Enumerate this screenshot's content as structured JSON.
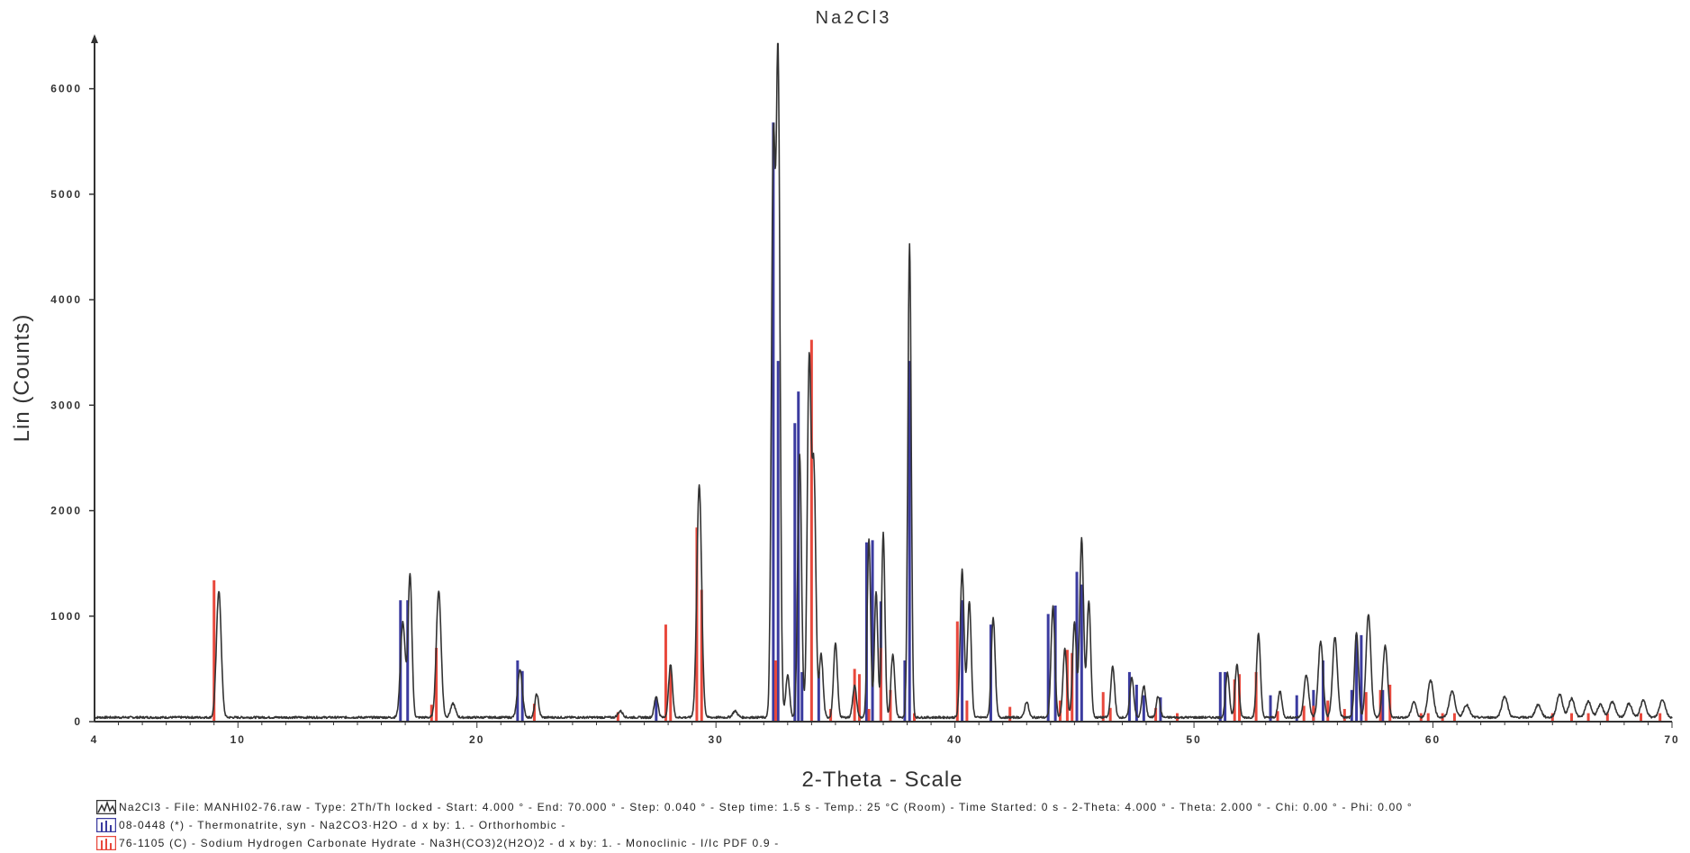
{
  "chart_data": {
    "type": "line",
    "title": "Na2Cl3",
    "xlabel": "2-Theta - Scale",
    "ylabel": "Lin (Counts)",
    "xlim": [
      4,
      70
    ],
    "ylim": [
      0,
      6500
    ],
    "x_ticks": [
      4,
      10,
      20,
      30,
      40,
      50,
      60,
      70
    ],
    "y_ticks": [
      0,
      1000,
      2000,
      3000,
      4000,
      5000,
      6000
    ],
    "x_tick_labels": [
      "4",
      "10",
      "20",
      "30",
      "40",
      "50",
      "60",
      "70"
    ],
    "y_tick_labels": [
      "0",
      "1000",
      "2000",
      "3000",
      "4000",
      "5000",
      "6000"
    ],
    "grid": false,
    "legend_position": "bottom-left",
    "pattern": {
      "color": "#333333",
      "baseline": 40,
      "peaks": [
        [
          9.2,
          1200,
          0.1
        ],
        [
          16.9,
          900,
          0.1
        ],
        [
          17.2,
          1350,
          0.08
        ],
        [
          18.4,
          1200,
          0.1
        ],
        [
          19.0,
          130,
          0.1
        ],
        [
          21.8,
          450,
          0.1
        ],
        [
          22.5,
          220,
          0.08
        ],
        [
          26.0,
          60,
          0.1
        ],
        [
          27.5,
          200,
          0.08
        ],
        [
          28.1,
          500,
          0.08
        ],
        [
          29.3,
          2200,
          0.1
        ],
        [
          30.8,
          60,
          0.1
        ],
        [
          32.4,
          5300,
          0.08
        ],
        [
          32.6,
          6150,
          0.08
        ],
        [
          33.0,
          400,
          0.08
        ],
        [
          33.5,
          2500,
          0.08
        ],
        [
          33.9,
          3350,
          0.08
        ],
        [
          34.1,
          2300,
          0.08
        ],
        [
          34.4,
          600,
          0.08
        ],
        [
          35.0,
          700,
          0.08
        ],
        [
          35.8,
          300,
          0.08
        ],
        [
          36.4,
          1700,
          0.07
        ],
        [
          36.7,
          1200,
          0.07
        ],
        [
          37.0,
          1750,
          0.07
        ],
        [
          37.4,
          600,
          0.08
        ],
        [
          38.1,
          4500,
          0.07
        ],
        [
          40.3,
          1400,
          0.08
        ],
        [
          40.6,
          1100,
          0.08
        ],
        [
          41.6,
          950,
          0.08
        ],
        [
          43.0,
          150,
          0.08
        ],
        [
          44.1,
          1050,
          0.08
        ],
        [
          44.6,
          650,
          0.08
        ],
        [
          45.0,
          900,
          0.08
        ],
        [
          45.3,
          1700,
          0.08
        ],
        [
          45.6,
          1100,
          0.08
        ],
        [
          46.6,
          480,
          0.08
        ],
        [
          47.4,
          380,
          0.08
        ],
        [
          47.9,
          300,
          0.08
        ],
        [
          48.5,
          200,
          0.08
        ],
        [
          51.4,
          420,
          0.08
        ],
        [
          51.8,
          500,
          0.08
        ],
        [
          52.7,
          800,
          0.08
        ],
        [
          53.6,
          250,
          0.08
        ],
        [
          54.7,
          400,
          0.1
        ],
        [
          55.3,
          720,
          0.1
        ],
        [
          55.9,
          760,
          0.1
        ],
        [
          56.8,
          800,
          0.08
        ],
        [
          57.3,
          980,
          0.1
        ],
        [
          58.0,
          680,
          0.1
        ],
        [
          59.2,
          150,
          0.1
        ],
        [
          59.9,
          350,
          0.12
        ],
        [
          60.8,
          250,
          0.12
        ],
        [
          61.4,
          120,
          0.12
        ],
        [
          63.0,
          200,
          0.12
        ],
        [
          64.4,
          120,
          0.12
        ],
        [
          65.3,
          220,
          0.12
        ],
        [
          65.8,
          180,
          0.12
        ],
        [
          66.5,
          150,
          0.12
        ],
        [
          67.0,
          120,
          0.12
        ],
        [
          67.5,
          150,
          0.12
        ],
        [
          68.2,
          130,
          0.12
        ],
        [
          68.8,
          160,
          0.12
        ],
        [
          69.6,
          170,
          0.12
        ]
      ]
    },
    "series": [
      {
        "name": "08-0448 (*) - Thermonatrite, syn - Na2CO3·H2O - d x by: 1. - Orthorhombic -",
        "color": "#3b3b9f",
        "sticks": [
          [
            16.8,
            1150
          ],
          [
            17.1,
            1150
          ],
          [
            21.7,
            580
          ],
          [
            21.9,
            480
          ],
          [
            27.5,
            230
          ],
          [
            32.4,
            5680
          ],
          [
            32.6,
            3420
          ],
          [
            33.3,
            2830
          ],
          [
            33.45,
            3130
          ],
          [
            33.6,
            470
          ],
          [
            34.3,
            470
          ],
          [
            36.3,
            1700
          ],
          [
            36.55,
            1720
          ],
          [
            36.9,
            1140
          ],
          [
            37.9,
            580
          ],
          [
            38.1,
            3420
          ],
          [
            40.3,
            1150
          ],
          [
            41.5,
            920
          ],
          [
            43.9,
            1020
          ],
          [
            44.2,
            1100
          ],
          [
            45.1,
            1420
          ],
          [
            45.3,
            1300
          ],
          [
            47.3,
            470
          ],
          [
            47.6,
            350
          ],
          [
            47.9,
            250
          ],
          [
            48.6,
            230
          ],
          [
            51.1,
            470
          ],
          [
            51.3,
            470
          ],
          [
            53.2,
            250
          ],
          [
            54.3,
            250
          ],
          [
            55.0,
            300
          ],
          [
            55.4,
            580
          ],
          [
            56.6,
            300
          ],
          [
            56.8,
            820
          ],
          [
            57.0,
            820
          ],
          [
            57.9,
            300
          ]
        ]
      },
      {
        "name": "76-1105 (C) - Sodium Hydrogen Carbonate Hydrate - Na3H(CO3)2(H2O)2 - d x by: 1. - Monoclinic - I/Ic PDF 0.9 -",
        "color": "#e8483c",
        "sticks": [
          [
            9.0,
            1340
          ],
          [
            18.1,
            160
          ],
          [
            18.3,
            700
          ],
          [
            22.4,
            170
          ],
          [
            25.9,
            90
          ],
          [
            27.9,
            920
          ],
          [
            28.1,
            500
          ],
          [
            29.2,
            1840
          ],
          [
            29.4,
            1250
          ],
          [
            32.5,
            580
          ],
          [
            34.0,
            3620
          ],
          [
            34.8,
            120
          ],
          [
            35.8,
            500
          ],
          [
            36.0,
            450
          ],
          [
            36.4,
            120
          ],
          [
            36.9,
            700
          ],
          [
            37.3,
            300
          ],
          [
            38.3,
            80
          ],
          [
            40.1,
            950
          ],
          [
            40.5,
            200
          ],
          [
            42.3,
            140
          ],
          [
            44.4,
            200
          ],
          [
            44.7,
            680
          ],
          [
            44.9,
            650
          ],
          [
            46.2,
            280
          ],
          [
            46.5,
            130
          ],
          [
            48.4,
            130
          ],
          [
            49.3,
            80
          ],
          [
            51.7,
            400
          ],
          [
            51.9,
            450
          ],
          [
            52.6,
            470
          ],
          [
            53.5,
            100
          ],
          [
            54.6,
            150
          ],
          [
            55.0,
            150
          ],
          [
            55.6,
            200
          ],
          [
            56.3,
            120
          ],
          [
            57.2,
            280
          ],
          [
            57.8,
            300
          ],
          [
            58.2,
            350
          ],
          [
            59.5,
            80
          ],
          [
            59.8,
            80
          ],
          [
            60.4,
            80
          ],
          [
            60.9,
            80
          ],
          [
            65.0,
            80
          ],
          [
            65.8,
            80
          ],
          [
            66.5,
            80
          ],
          [
            67.3,
            80
          ],
          [
            68.7,
            80
          ],
          [
            69.5,
            80
          ]
        ]
      }
    ],
    "legend": [
      {
        "icon": "line-pattern",
        "color": "#333333",
        "label": "Na2Cl3 - File: MANHI02-76.raw - Type: 2Th/Th locked - Start: 4.000 ° - End: 70.000 ° - Step: 0.040 ° - Step time: 1.5 s - Temp.: 25 °C (Room) - Time Started: 0 s - 2-Theta: 4.000 ° - Theta: 2.000 ° - Chi: 0.00 ° - Phi: 0.00 °"
      },
      {
        "icon": "stick-pattern",
        "color": "#3b3b9f",
        "label": "08-0448 (*) - Thermonatrite, syn - Na2CO3·H2O - d x by: 1. - Orthorhombic -"
      },
      {
        "icon": "stick-pattern",
        "color": "#e8483c",
        "label": "76-1105 (C) - Sodium Hydrogen Carbonate Hydrate - Na3H(CO3)2(H2O)2 - d x by: 1. - Monoclinic - I/Ic PDF 0.9 -"
      }
    ]
  }
}
